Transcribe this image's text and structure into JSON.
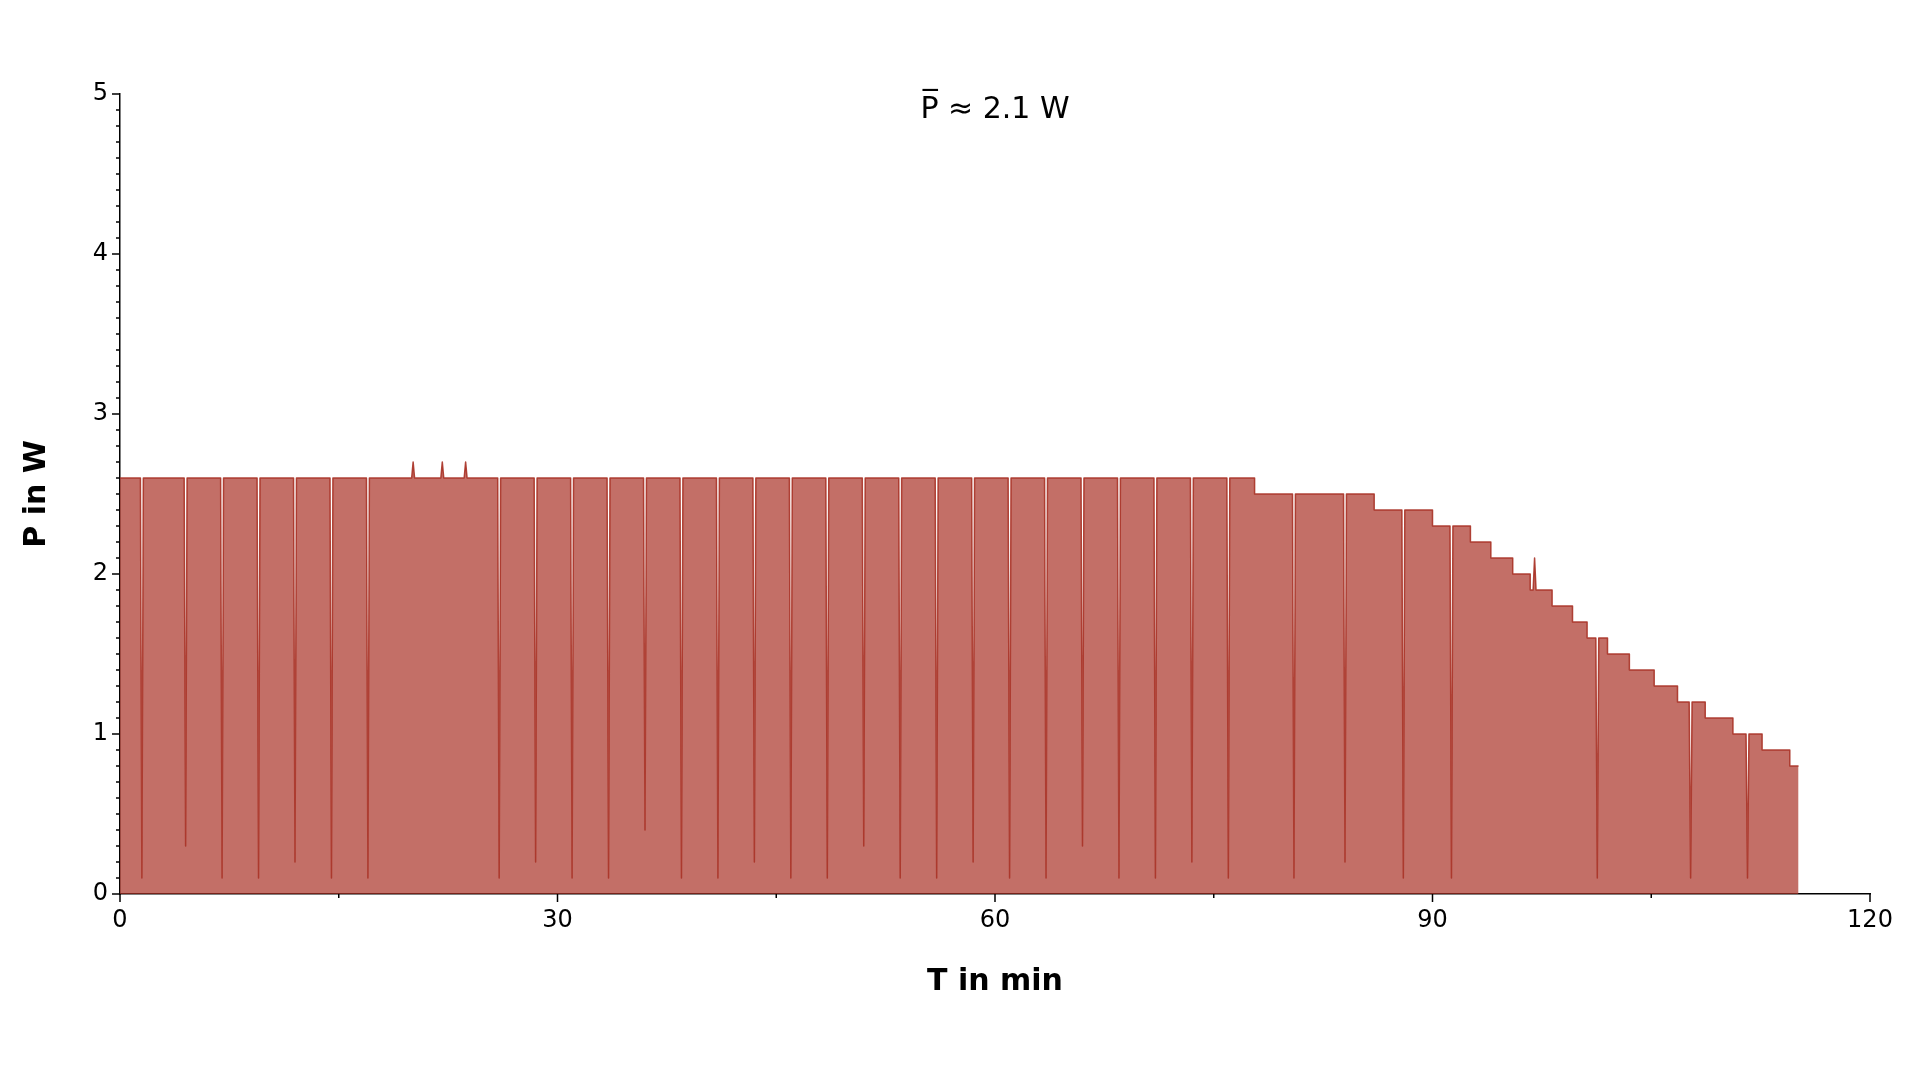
{
  "chart_data": {
    "type": "area",
    "xlabel": "T in min",
    "ylabel": "P in W",
    "annotations": [
      "P̅ ≈ 2.1 W"
    ],
    "color": "#a93226",
    "x": [
      0,
      1.4,
      1.5,
      1.6,
      4.4,
      4.5,
      4.6,
      6.9,
      7.0,
      7.1,
      9.4,
      9.5,
      9.6,
      11.9,
      12.0,
      12.1,
      14.4,
      14.5,
      14.6,
      16.9,
      17.0,
      17.1,
      20.0,
      20.1,
      20.2,
      22.0,
      22.1,
      22.2,
      23.6,
      23.7,
      23.8,
      25.9,
      26.0,
      26.1,
      28.4,
      28.5,
      28.6,
      30.9,
      31.0,
      31.1,
      33.4,
      33.5,
      33.6,
      35.9,
      36.0,
      36.1,
      38.4,
      38.5,
      38.6,
      40.9,
      41.0,
      41.1,
      43.4,
      43.5,
      43.6,
      45.9,
      46.0,
      46.1,
      48.4,
      48.5,
      48.6,
      50.9,
      51.0,
      51.1,
      53.4,
      53.5,
      53.6,
      55.9,
      56.0,
      56.1,
      58.4,
      58.5,
      58.6,
      60.9,
      61.0,
      61.1,
      63.4,
      63.5,
      63.6,
      65.9,
      66.0,
      66.1,
      68.4,
      68.5,
      68.6,
      70.9,
      71.0,
      71.1,
      73.4,
      73.5,
      73.6,
      75.9,
      76.0,
      76.1,
      77.8,
      77.8,
      80.4,
      80.5,
      80.6,
      83.9,
      84.0,
      84.1,
      86.0,
      86.0,
      87.9,
      88.0,
      88.1,
      90.0,
      90.0,
      91.2,
      91.3,
      91.4,
      92.6,
      92.6,
      94.0,
      94.0,
      95.5,
      95.5,
      96.7,
      96.7,
      96.9,
      97.0,
      97.1,
      98.2,
      98.2,
      99.6,
      99.6,
      100.6,
      100.6,
      101.2,
      101.3,
      101.4,
      102.0,
      102.0,
      103.5,
      103.5,
      105.2,
      105.2,
      106.8,
      106.8,
      107.6,
      107.7,
      107.8,
      108.7,
      108.7,
      110.6,
      110.6,
      111.5,
      111.6,
      111.7,
      112.6,
      112.6,
      114.5,
      114.5,
      115.1
    ],
    "values": [
      2.6,
      2.6,
      0.1,
      2.6,
      2.6,
      0.3,
      2.6,
      2.6,
      0.1,
      2.6,
      2.6,
      0.1,
      2.6,
      2.6,
      0.2,
      2.6,
      2.6,
      0.1,
      2.6,
      2.6,
      0.1,
      2.6,
      2.6,
      2.7,
      2.6,
      2.6,
      2.7,
      2.6,
      2.6,
      2.7,
      2.6,
      2.6,
      0.1,
      2.6,
      2.6,
      0.2,
      2.6,
      2.6,
      0.1,
      2.6,
      2.6,
      0.1,
      2.6,
      2.6,
      0.4,
      2.6,
      2.6,
      0.1,
      2.6,
      2.6,
      0.1,
      2.6,
      2.6,
      0.2,
      2.6,
      2.6,
      0.1,
      2.6,
      2.6,
      0.1,
      2.6,
      2.6,
      0.3,
      2.6,
      2.6,
      0.1,
      2.6,
      2.6,
      0.1,
      2.6,
      2.6,
      0.2,
      2.6,
      2.6,
      0.1,
      2.6,
      2.6,
      0.1,
      2.6,
      2.6,
      0.3,
      2.6,
      2.6,
      0.1,
      2.6,
      2.6,
      0.1,
      2.6,
      2.6,
      0.2,
      2.6,
      2.6,
      0.1,
      2.6,
      2.6,
      2.5,
      2.5,
      0.1,
      2.5,
      2.5,
      0.2,
      2.5,
      2.5,
      2.4,
      2.4,
      0.1,
      2.4,
      2.4,
      2.3,
      2.3,
      0.1,
      2.3,
      2.3,
      2.2,
      2.2,
      2.1,
      2.1,
      2.0,
      2.0,
      1.9,
      1.9,
      2.1,
      1.9,
      1.9,
      1.8,
      1.8,
      1.7,
      1.7,
      1.6,
      1.6,
      0.1,
      1.6,
      1.6,
      1.5,
      1.5,
      1.4,
      1.4,
      1.3,
      1.3,
      1.2,
      1.2,
      0.1,
      1.2,
      1.2,
      1.1,
      1.1,
      1.0,
      1.0,
      0.1,
      1.0,
      1.0,
      0.9,
      0.9,
      0.8,
      0.8
    ],
    "xlim": [
      0,
      120
    ],
    "xticks": [
      0,
      {
        "value": 15,
        "label": null
      },
      30,
      {
        "value": 45,
        "label": null
      },
      60,
      {
        "value": 75,
        "label": null
      },
      90,
      {
        "value": 105,
        "label": null
      },
      120
    ],
    "ylim": [
      0,
      5
    ],
    "yticks": [
      0,
      {
        "value": 0.1,
        "label": null
      },
      {
        "value": 0.2,
        "label": null
      },
      {
        "value": 0.3,
        "label": null
      },
      {
        "value": 0.4,
        "label": null
      },
      {
        "value": 0.5,
        "label": null
      },
      {
        "value": 0.6,
        "label": null
      },
      {
        "value": 0.7,
        "label": null
      },
      {
        "value": 0.8,
        "label": null
      },
      {
        "value": 0.9,
        "label": null
      },
      1,
      {
        "value": 1.1,
        "label": null
      },
      {
        "value": 1.2,
        "label": null
      },
      {
        "value": 1.3,
        "label": null
      },
      {
        "value": 1.4,
        "label": null
      },
      {
        "value": 1.5,
        "label": null
      },
      {
        "value": 1.6,
        "label": null
      },
      {
        "value": 1.7,
        "label": null
      },
      {
        "value": 1.8,
        "label": null
      },
      {
        "value": 1.9,
        "label": null
      },
      2,
      {
        "value": 2.1,
        "label": null
      },
      {
        "value": 2.2,
        "label": null
      },
      {
        "value": 2.3,
        "label": null
      },
      {
        "value": 2.4,
        "label": null
      },
      {
        "value": 2.5,
        "label": null
      },
      {
        "value": 2.6,
        "label": null
      },
      {
        "value": 2.7,
        "label": null
      },
      {
        "value": 2.8,
        "label": null
      },
      {
        "value": 2.9,
        "label": null
      },
      3,
      {
        "value": 3.1,
        "label": null
      },
      {
        "value": 3.2,
        "label": null
      },
      {
        "value": 3.3,
        "label": null
      },
      {
        "value": 3.4,
        "label": null
      },
      {
        "value": 3.5,
        "label": null
      },
      {
        "value": 3.6,
        "label": null
      },
      {
        "value": 3.7,
        "label": null
      },
      {
        "value": 3.8,
        "label": null
      },
      {
        "value": 3.9,
        "label": null
      },
      4,
      {
        "value": 4.1,
        "label": null
      },
      {
        "value": 4.2,
        "label": null
      },
      {
        "value": 4.3,
        "label": null
      },
      {
        "value": 4.4,
        "label": null
      },
      {
        "value": 4.5,
        "label": null
      },
      {
        "value": 4.6,
        "label": null
      },
      {
        "value": 4.7,
        "label": null
      },
      {
        "value": 4.8,
        "label": null
      },
      {
        "value": 4.9,
        "label": null
      },
      5
    ]
  }
}
